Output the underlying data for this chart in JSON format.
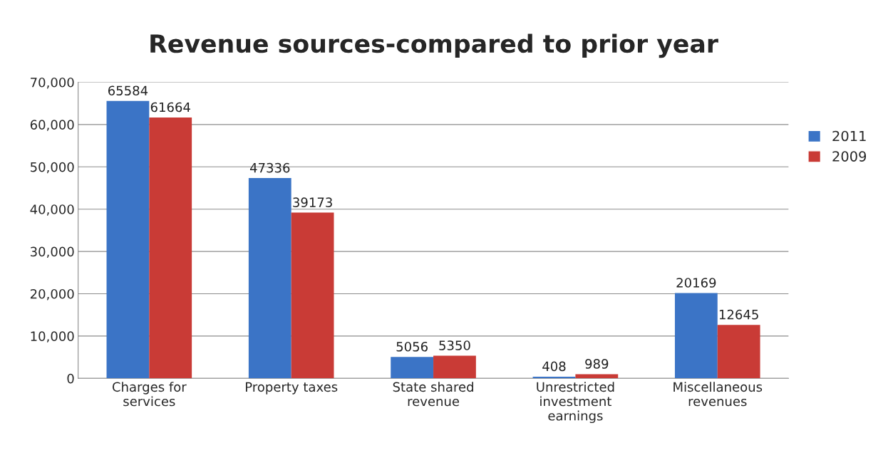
{
  "chart_data": {
    "type": "bar",
    "title": "Revenue sources-compared to prior year",
    "categories": [
      "Charges for\nservices",
      "Property taxes",
      "State shared\nrevenue",
      "Unrestricted\ninvestment\nearnings",
      "Miscellaneous\nrevenues"
    ],
    "series": [
      {
        "name": "2011",
        "color": "#3b74c6",
        "values": [
          65584,
          47336,
          5056,
          408,
          20169
        ]
      },
      {
        "name": "2009",
        "color": "#c93b36",
        "values": [
          61664,
          39173,
          5350,
          989,
          12645
        ]
      }
    ],
    "ylim": [
      0,
      70000
    ],
    "yticks": [
      0,
      {
        "value": 10000,
        "label": "10,000"
      },
      {
        "value": 20000,
        "label": "20,000"
      },
      {
        "value": 30000,
        "label": "30,000"
      },
      {
        "value": 40000,
        "label": "40,000"
      },
      {
        "value": 50000,
        "label": "50,000"
      },
      {
        "value": 60000,
        "label": "60,000"
      },
      {
        "value": 70000,
        "label": "70,000"
      }
    ],
    "grid": "y",
    "legend": "right",
    "data_labels": true
  }
}
